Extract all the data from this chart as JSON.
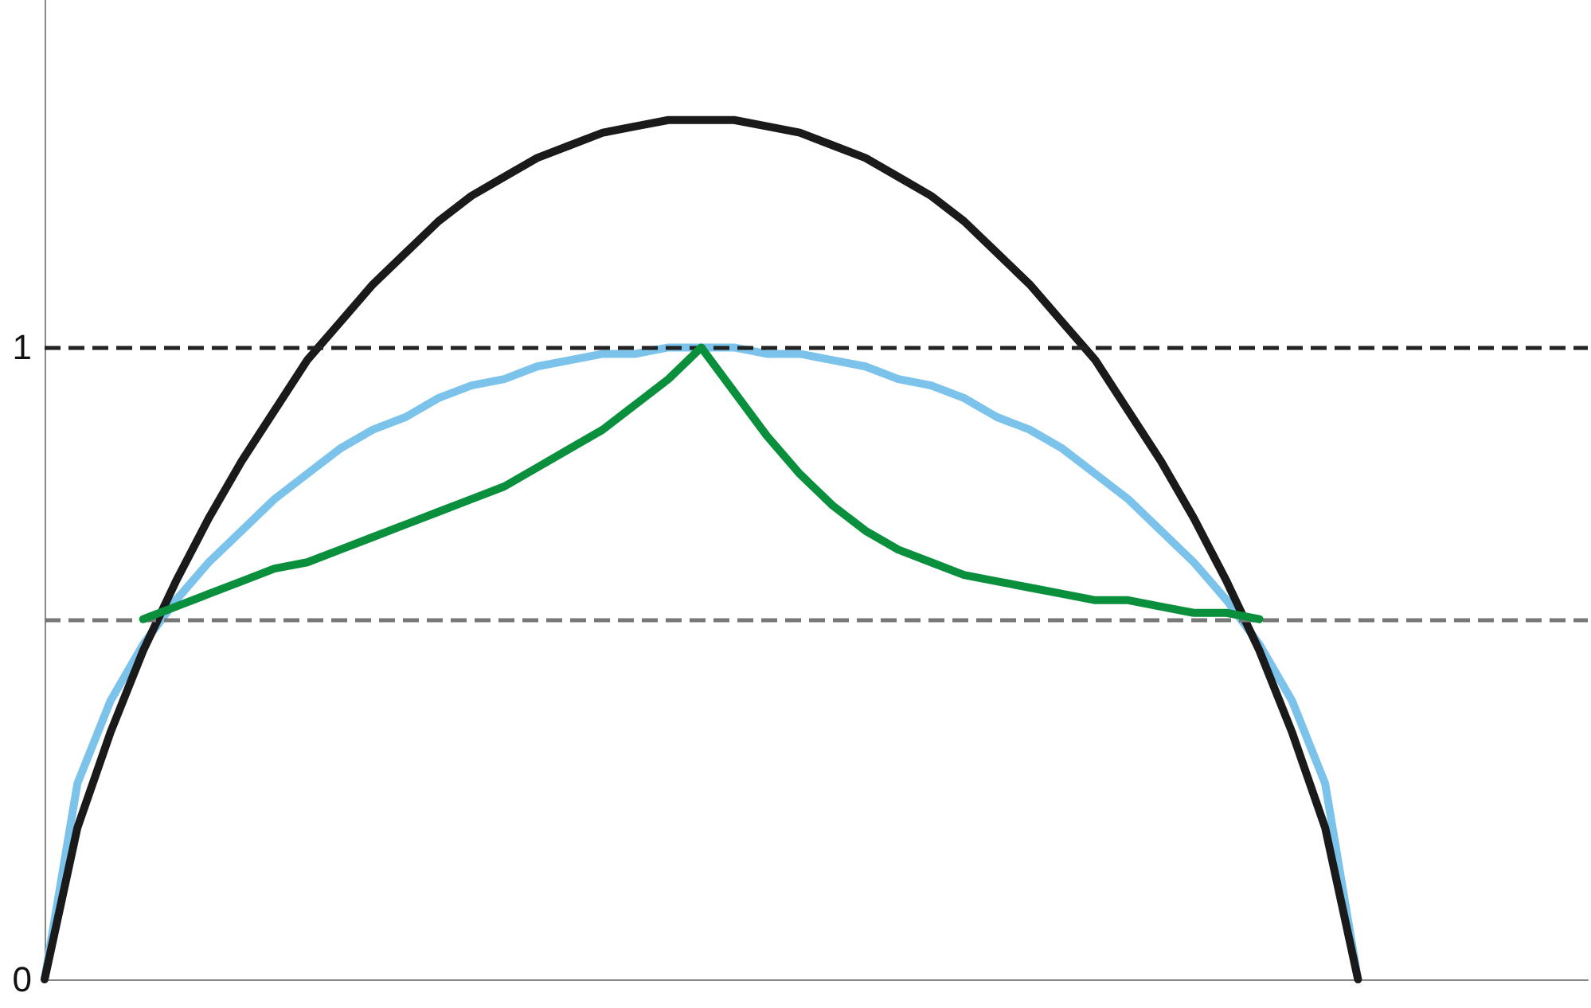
{
  "chart_data": {
    "type": "line",
    "categories": [
      null,
      null,
      null,
      null,
      null,
      null,
      null,
      null,
      null,
      null,
      null,
      null,
      null,
      null,
      null,
      null,
      null,
      null,
      null,
      null,
      null,
      null,
      null,
      null,
      null,
      null,
      null,
      null,
      null,
      null,
      null,
      null,
      null,
      null,
      null,
      null,
      null,
      null,
      null,
      null,
      null,
      null,
      null,
      null,
      null,
      null,
      null,
      null
    ],
    "series": [
      {
        "color": "#7cc3ec",
        "values": [
          0,
          0.31,
          0.44,
          0.53,
          0.6,
          0.66,
          0.71,
          0.76,
          0.8,
          0.84,
          0.87,
          0.89,
          0.92,
          0.94,
          0.95,
          0.97,
          0.98,
          0.99,
          0.99,
          1.0,
          1.0,
          1.0,
          0.99,
          0.99,
          0.98,
          0.97,
          0.95,
          0.94,
          0.92,
          0.89,
          0.87,
          0.84,
          0.8,
          0.76,
          0.71,
          0.66,
          0.6,
          0.53,
          0.44,
          0.31,
          0,
          null,
          null,
          null,
          null,
          null,
          null,
          null
        ]
      },
      {
        "color": "#1a1a1a",
        "values": [
          0,
          0.24,
          0.39,
          0.52,
          0.63,
          0.73,
          0.82,
          0.9,
          0.98,
          1.04,
          1.1,
          1.15,
          1.2,
          1.24,
          1.27,
          1.3,
          1.32,
          1.34,
          1.35,
          1.36,
          1.36,
          1.36,
          1.35,
          1.34,
          1.32,
          1.3,
          1.27,
          1.24,
          1.2,
          1.15,
          1.1,
          1.04,
          0.98,
          0.9,
          0.82,
          0.73,
          0.63,
          0.52,
          0.39,
          0.24,
          0,
          null,
          null,
          null,
          null,
          null,
          null,
          null
        ]
      },
      {
        "color": "#0a8f3c",
        "values": [
          null,
          null,
          null,
          0.57,
          0.59,
          0.61,
          0.63,
          0.65,
          0.66,
          0.68,
          0.7,
          0.72,
          0.74,
          0.76,
          0.78,
          0.81,
          0.84,
          0.87,
          0.91,
          0.95,
          1.0,
          0.93,
          0.86,
          0.8,
          0.75,
          0.71,
          0.68,
          0.66,
          0.64,
          0.63,
          0.62,
          0.61,
          0.6,
          0.6,
          0.59,
          0.58,
          0.58,
          0.57,
          null,
          null,
          null,
          null,
          null,
          null,
          null,
          null,
          null,
          null
        ]
      }
    ],
    "ylim": [
      0,
      1.55
    ],
    "yticks": [
      0,
      1
    ],
    "tick_labels": "y",
    "grid": false,
    "marker": "none",
    "line_style": "solid",
    "ref_lines": [
      {
        "axis": "y",
        "value": 1,
        "color": "#222222",
        "line_style": "dashed"
      },
      {
        "axis": "y",
        "value": 0.57,
        "color": "#777777",
        "line_style": "dashed"
      }
    ]
  }
}
